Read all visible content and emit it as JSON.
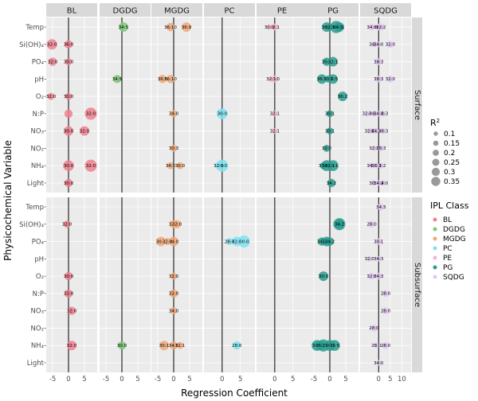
{
  "chart_data": {
    "type": "scatter",
    "xlabel": "Regression Coefficient",
    "ylabel": "Physicochemical Variable",
    "columns": [
      "BL",
      "DGDG",
      "MGDG",
      "PC",
      "PE",
      "PG",
      "SQDG"
    ],
    "rows": [
      "Surface",
      "Subsurface"
    ],
    "variables": [
      "Temp",
      "Si(OH)₄",
      "PO₄",
      "pH",
      "O₂",
      "N:P",
      "NO₃",
      "NO₂",
      "NH₄",
      "Light"
    ],
    "x_ticks": {
      "BL": [
        "-5",
        "0",
        "5"
      ],
      "DGDG": [
        "-5",
        "0",
        "5"
      ],
      "MGDG": [
        "-5",
        "0",
        "5"
      ],
      "PC": [
        "0",
        "5"
      ],
      "PE": [
        "0",
        "5"
      ],
      "PG": [
        "-5",
        "0",
        "5"
      ],
      "SQDG": [
        "0",
        "5",
        "10"
      ]
    },
    "colors": {
      "BL": "#f0808f",
      "DGDG": "#7ec97a",
      "MGDG": "#f0a87a",
      "PC": "#7fe3f0",
      "PE": "#f4b8cc",
      "PG": "#2a9d8f",
      "SQDG": "#e4c8f4"
    },
    "legend_size": {
      "title": "R",
      "superscript": "2",
      "values": [
        "0.1",
        "0.15",
        "0.2",
        "0.25",
        "0.3",
        "0.35"
      ]
    },
    "legend_class": {
      "title": "IPL Class",
      "items": [
        "BL",
        "DGDG",
        "MGDG",
        "PC",
        "PE",
        "PG",
        "SQDG"
      ]
    },
    "points": [
      {
        "r": "Surface",
        "c": "BL",
        "v": "Si(OH)₄",
        "x": -5.2,
        "s": 0.28,
        "label": "32:0"
      },
      {
        "r": "Surface",
        "c": "BL",
        "v": "Si(OH)₄",
        "x": 0,
        "s": 0.2,
        "label": "36:0"
      },
      {
        "r": "Surface",
        "c": "BL",
        "v": "PO₄",
        "x": -5.0,
        "s": 0.2,
        "label": "32:0"
      },
      {
        "r": "Surface",
        "c": "BL",
        "v": "PO₄",
        "x": 0,
        "s": 0.15,
        "label": "30:0"
      },
      {
        "r": "Surface",
        "c": "BL",
        "v": "O₂",
        "x": -5.5,
        "s": 0.15,
        "label": "32:0"
      },
      {
        "r": "Surface",
        "c": "BL",
        "v": "O₂",
        "x": 0,
        "s": 0.15,
        "label": "30:0"
      },
      {
        "r": "Surface",
        "c": "BL",
        "v": "N:P",
        "x": 0,
        "s": 0.2,
        "label": ""
      },
      {
        "r": "Surface",
        "c": "BL",
        "v": "N:P",
        "x": 7,
        "s": 0.35,
        "label": "32:0"
      },
      {
        "r": "Surface",
        "c": "BL",
        "v": "NO₃",
        "x": 0,
        "s": 0.25,
        "label": "30:0"
      },
      {
        "r": "Surface",
        "c": "BL",
        "v": "NO₃",
        "x": 5,
        "s": 0.25,
        "label": "32:0"
      },
      {
        "r": "Surface",
        "c": "BL",
        "v": "NH₄",
        "x": 0,
        "s": 0.3,
        "label": "30:0"
      },
      {
        "r": "Surface",
        "c": "BL",
        "v": "NH₄",
        "x": 7,
        "s": 0.35,
        "label": "32:0"
      },
      {
        "r": "Surface",
        "c": "BL",
        "v": "Light",
        "x": 0,
        "s": 0.2,
        "label": "30:0"
      },
      {
        "r": "Surface",
        "c": "DGDG",
        "v": "Temp",
        "x": 0.5,
        "s": 0.25,
        "label": "34:5"
      },
      {
        "r": "Surface",
        "c": "DGDG",
        "v": "pH",
        "x": -1.5,
        "s": 0.2,
        "label": "34:5"
      },
      {
        "r": "Surface",
        "c": "MGDG",
        "v": "Temp",
        "x": -1,
        "s": 0.2,
        "label": "36:10"
      },
      {
        "r": "Surface",
        "c": "MGDG",
        "v": "Temp",
        "x": 4,
        "s": 0.25,
        "label": "36:9"
      },
      {
        "r": "Surface",
        "c": "MGDG",
        "v": "pH",
        "x": -3.5,
        "s": 0.2,
        "label": "36:9"
      },
      {
        "r": "Surface",
        "c": "MGDG",
        "v": "pH",
        "x": -1,
        "s": 0.2,
        "label": "36:10"
      },
      {
        "r": "Surface",
        "c": "MGDG",
        "v": "N:P",
        "x": 0,
        "s": 0.15,
        "label": "34:0"
      },
      {
        "r": "Surface",
        "c": "MGDG",
        "v": "NO₂",
        "x": 0,
        "s": 0.15,
        "label": "30:3"
      },
      {
        "r": "Surface",
        "c": "MGDG",
        "v": "NH₄",
        "x": -1,
        "s": 0.15,
        "label": "34:0"
      },
      {
        "r": "Surface",
        "c": "MGDG",
        "v": "NH₄",
        "x": 2,
        "s": 0.15,
        "label": "30:0"
      },
      {
        "r": "Surface",
        "c": "PC",
        "v": "N:P",
        "x": 0,
        "s": 0.3,
        "label": "30:0"
      },
      {
        "r": "Surface",
        "c": "PC",
        "v": "NH₄",
        "x": 0,
        "s": 0.35,
        "label": "30:0"
      },
      {
        "r": "Surface",
        "c": "PC",
        "v": "NH₄",
        "x": -1,
        "s": 0.15,
        "label": "32:0"
      },
      {
        "r": "Surface",
        "c": "PE",
        "v": "Temp",
        "x": 0,
        "s": 0.15,
        "label": "32:1"
      },
      {
        "r": "Surface",
        "c": "PE",
        "v": "Temp",
        "x": -1.5,
        "s": 0.1,
        "label": "30:0"
      },
      {
        "r": "Surface",
        "c": "PE",
        "v": "pH",
        "x": 0,
        "s": 0.15,
        "label": "30:0"
      },
      {
        "r": "Surface",
        "c": "PE",
        "v": "pH",
        "x": -1,
        "s": 0.1,
        "label": "32:1"
      },
      {
        "r": "Surface",
        "c": "PE",
        "v": "N:P",
        "x": 0,
        "s": 0.1,
        "label": "32:1"
      },
      {
        "r": "Surface",
        "c": "PE",
        "v": "NO₃",
        "x": 0,
        "s": 0.1,
        "label": "32:1"
      },
      {
        "r": "Surface",
        "c": "PG",
        "v": "Temp",
        "x": -1,
        "s": 0.25,
        "label": "36:5"
      },
      {
        "r": "Surface",
        "c": "PG",
        "v": "Temp",
        "x": 2,
        "s": 0.35,
        "label": "34:2"
      },
      {
        "r": "Surface",
        "c": "PG",
        "v": "Temp",
        "x": 3,
        "s": 0.25,
        "label": "36:1"
      },
      {
        "r": "Surface",
        "c": "PG",
        "v": "Temp",
        "x": 0,
        "s": 0.15,
        "label": "32:1"
      },
      {
        "r": "Surface",
        "c": "PG",
        "v": "Temp",
        "x": 2.5,
        "s": 0.15,
        "label": "34:1"
      },
      {
        "r": "Surface",
        "c": "PG",
        "v": "PO₄",
        "x": -1,
        "s": 0.2,
        "label": "30:1"
      },
      {
        "r": "Surface",
        "c": "PG",
        "v": "PO₄",
        "x": 1,
        "s": 0.25,
        "label": "32:1"
      },
      {
        "r": "Surface",
        "c": "PG",
        "v": "pH",
        "x": -2.5,
        "s": 0.25,
        "label": "36:1"
      },
      {
        "r": "Surface",
        "c": "PG",
        "v": "pH",
        "x": 1,
        "s": 0.25,
        "label": "36:5"
      },
      {
        "r": "Surface",
        "c": "PG",
        "v": "pH",
        "x": -0.5,
        "s": 0.15,
        "label": "30:1"
      },
      {
        "r": "Surface",
        "c": "PG",
        "v": "O₂",
        "x": 4,
        "s": 0.25,
        "label": "36:2"
      },
      {
        "r": "Surface",
        "c": "PG",
        "v": "N:P",
        "x": 0,
        "s": 0.15,
        "label": "30:1"
      },
      {
        "r": "Surface",
        "c": "PG",
        "v": "NO₃",
        "x": 0,
        "s": 0.15,
        "label": "30:1"
      },
      {
        "r": "Surface",
        "c": "PG",
        "v": "NO₂",
        "x": -1,
        "s": 0.15,
        "label": "32:0"
      },
      {
        "r": "Surface",
        "c": "PG",
        "v": "NH₄",
        "x": -2,
        "s": 0.15,
        "label": "34:2"
      },
      {
        "r": "Surface",
        "c": "PG",
        "v": "NH₄",
        "x": -1,
        "s": 0.3,
        "label": "34:1"
      },
      {
        "r": "Surface",
        "c": "PG",
        "v": "NH₄",
        "x": 1,
        "s": 0.3,
        "label": "30:1"
      },
      {
        "r": "Surface",
        "c": "PG",
        "v": "NH₄",
        "x": 0,
        "s": 0.15,
        "label": "32:1"
      },
      {
        "r": "Surface",
        "c": "PG",
        "v": "Light",
        "x": 0.5,
        "s": 0.2,
        "label": "34:2"
      },
      {
        "r": "Surface",
        "c": "SQDG",
        "v": "Temp",
        "x": 0,
        "s": 0.15,
        "label": "38:3"
      },
      {
        "r": "Surface",
        "c": "SQDG",
        "v": "Temp",
        "x": 1,
        "s": 0.15,
        "label": "32:2"
      },
      {
        "r": "Surface",
        "c": "SQDG",
        "v": "Temp",
        "x": -3,
        "s": 0.15,
        "label": "34:0"
      },
      {
        "r": "Surface",
        "c": "SQDG",
        "v": "Si(OH)₄",
        "x": -2,
        "s": 0.1,
        "label": "34:3"
      },
      {
        "r": "Surface",
        "c": "SQDG",
        "v": "Si(OH)₄",
        "x": 5,
        "s": 0.15,
        "label": "32:0"
      },
      {
        "r": "Surface",
        "c": "SQDG",
        "v": "Si(OH)₄",
        "x": 0,
        "s": 0.1,
        "label": "34:0"
      },
      {
        "r": "Surface",
        "c": "SQDG",
        "v": "PO₄",
        "x": 0,
        "s": 0.15,
        "label": "38:3"
      },
      {
        "r": "Surface",
        "c": "SQDG",
        "v": "pH",
        "x": 0,
        "s": 0.15,
        "label": "38:3"
      },
      {
        "r": "Surface",
        "c": "SQDG",
        "v": "pH",
        "x": 5,
        "s": 0.15,
        "label": "32:0"
      },
      {
        "r": "Surface",
        "c": "SQDG",
        "v": "N:P",
        "x": -5,
        "s": 0.1,
        "label": "32:0"
      },
      {
        "r": "Surface",
        "c": "SQDG",
        "v": "N:P",
        "x": -2,
        "s": 0.1,
        "label": "34:2"
      },
      {
        "r": "Surface",
        "c": "SQDG",
        "v": "N:P",
        "x": 2,
        "s": 0.1,
        "label": "38:3"
      },
      {
        "r": "Surface",
        "c": "SQDG",
        "v": "N:P",
        "x": 0,
        "s": 0.1,
        "label": "34:1"
      },
      {
        "r": "Surface",
        "c": "SQDG",
        "v": "NO₃",
        "x": -2,
        "s": 0.1,
        "label": "34:3"
      },
      {
        "r": "Surface",
        "c": "SQDG",
        "v": "NO₃",
        "x": 2,
        "s": 0.1,
        "label": "38:3"
      },
      {
        "r": "Surface",
        "c": "SQDG",
        "v": "NO₃",
        "x": -4,
        "s": 0.1,
        "label": "32:0"
      },
      {
        "r": "Surface",
        "c": "SQDG",
        "v": "NO₃",
        "x": -1,
        "s": 0.1,
        "label": "34:2"
      },
      {
        "r": "Surface",
        "c": "SQDG",
        "v": "NO₂",
        "x": -2,
        "s": 0.1,
        "label": "32:2"
      },
      {
        "r": "Surface",
        "c": "SQDG",
        "v": "NO₂",
        "x": 1,
        "s": 0.1,
        "label": "38:3"
      },
      {
        "r": "Surface",
        "c": "SQDG",
        "v": "NH₄",
        "x": -3,
        "s": 0.1,
        "label": "34:3"
      },
      {
        "r": "Surface",
        "c": "SQDG",
        "v": "NH₄",
        "x": 1,
        "s": 0.1,
        "label": "32:2"
      },
      {
        "r": "Surface",
        "c": "SQDG",
        "v": "NH₄",
        "x": -1,
        "s": 0.1,
        "label": "38:3"
      },
      {
        "r": "Surface",
        "c": "SQDG",
        "v": "Light",
        "x": -2,
        "s": 0.1,
        "label": "30:1"
      },
      {
        "r": "Surface",
        "c": "SQDG",
        "v": "Light",
        "x": 2,
        "s": 0.1,
        "label": "34:0"
      },
      {
        "r": "Surface",
        "c": "SQDG",
        "v": "Light",
        "x": 0,
        "s": 0.1,
        "label": "34:2"
      },
      {
        "r": "Subsurface",
        "c": "BL",
        "v": "Si(OH)₄",
        "x": -0.5,
        "s": 0.15,
        "label": "32:0"
      },
      {
        "r": "Subsurface",
        "c": "BL",
        "v": "O₂",
        "x": 0,
        "s": 0.2,
        "label": "30:0"
      },
      {
        "r": "Subsurface",
        "c": "BL",
        "v": "N:P",
        "x": 0,
        "s": 0.2,
        "label": "32:0"
      },
      {
        "r": "Subsurface",
        "c": "BL",
        "v": "NO₃",
        "x": 1,
        "s": 0.2,
        "label": "32:0"
      },
      {
        "r": "Subsurface",
        "c": "BL",
        "v": "NH₄",
        "x": 1,
        "s": 0.25,
        "label": "32:0"
      },
      {
        "r": "Subsurface",
        "c": "DGDG",
        "v": "NH₄",
        "x": 0,
        "s": 0.2,
        "label": "30:0"
      },
      {
        "r": "Subsurface",
        "c": "MGDG",
        "v": "Si(OH)₄",
        "x": 0,
        "s": 0.2,
        "label": "32:1"
      },
      {
        "r": "Subsurface",
        "c": "MGDG",
        "v": "Si(OH)₄",
        "x": 1,
        "s": 0.2,
        "label": "32:0"
      },
      {
        "r": "Subsurface",
        "c": "MGDG",
        "v": "PO₄",
        "x": -4,
        "s": 0.25,
        "label": "30:1"
      },
      {
        "r": "Subsurface",
        "c": "MGDG",
        "v": "PO₄",
        "x": 0,
        "s": 0.25,
        "label": "34:0"
      },
      {
        "r": "Subsurface",
        "c": "MGDG",
        "v": "PO₄",
        "x": -2,
        "s": 0.15,
        "label": "32:0"
      },
      {
        "r": "Subsurface",
        "c": "MGDG",
        "v": "O₂",
        "x": 0,
        "s": 0.15,
        "label": "32:0"
      },
      {
        "r": "Subsurface",
        "c": "MGDG",
        "v": "N:P",
        "x": 0,
        "s": 0.2,
        "label": "32:0"
      },
      {
        "r": "Subsurface",
        "c": "MGDG",
        "v": "NO₃",
        "x": 0,
        "s": 0.15,
        "label": "34:0"
      },
      {
        "r": "Subsurface",
        "c": "MGDG",
        "v": "NH₄",
        "x": -3,
        "s": 0.25,
        "label": "30:1"
      },
      {
        "r": "Subsurface",
        "c": "MGDG",
        "v": "NH₄",
        "x": 0,
        "s": 0.2,
        "label": "34:0"
      },
      {
        "r": "Subsurface",
        "c": "MGDG",
        "v": "NH₄",
        "x": 2,
        "s": 0.15,
        "label": "32:1"
      },
      {
        "r": "Subsurface",
        "c": "PC",
        "v": "PO₄",
        "x": 6,
        "s": 0.35,
        "label": "30:0"
      },
      {
        "r": "Subsurface",
        "c": "PC",
        "v": "PO₄",
        "x": 4,
        "s": 0.25,
        "label": "32:0"
      },
      {
        "r": "Subsurface",
        "c": "PC",
        "v": "PO₄",
        "x": 2,
        "s": 0.15,
        "label": "28:0"
      },
      {
        "r": "Subsurface",
        "c": "PC",
        "v": "NH₄",
        "x": 4,
        "s": 0.2,
        "label": "28:0"
      },
      {
        "r": "Subsurface",
        "c": "PG",
        "v": "Si(OH)₄",
        "x": 3,
        "s": 0.35,
        "label": "36:2"
      },
      {
        "r": "Subsurface",
        "c": "PG",
        "v": "Si(OH)₄",
        "x": 3,
        "s": 0.25,
        "label": "34:2"
      },
      {
        "r": "Subsurface",
        "c": "PG",
        "v": "PO₄",
        "x": -2.5,
        "s": 0.2,
        "label": "34:1"
      },
      {
        "r": "Subsurface",
        "c": "PG",
        "v": "PO₄",
        "x": -1,
        "s": 0.25,
        "label": "32:1"
      },
      {
        "r": "Subsurface",
        "c": "PG",
        "v": "PO₄",
        "x": 0,
        "s": 0.2,
        "label": "34:2"
      },
      {
        "r": "Subsurface",
        "c": "PG",
        "v": "O₂",
        "x": -2,
        "s": 0.25,
        "label": "30:0"
      },
      {
        "r": "Subsurface",
        "c": "PG",
        "v": "NH₄",
        "x": -4,
        "s": 0.3,
        "label": "34:1"
      },
      {
        "r": "Subsurface",
        "c": "PG",
        "v": "NH₄",
        "x": -2,
        "s": 0.35,
        "label": "36:1"
      },
      {
        "r": "Subsurface",
        "c": "PG",
        "v": "NH₄",
        "x": 0,
        "s": 0.3,
        "label": "34:2"
      },
      {
        "r": "Subsurface",
        "c": "PG",
        "v": "NH₄",
        "x": 1.5,
        "s": 0.3,
        "label": "36:5"
      },
      {
        "r": "Subsurface",
        "c": "PG",
        "v": "NH₄",
        "x": -3,
        "s": 0.25,
        "label": "36:2"
      },
      {
        "r": "Subsurface",
        "c": "SQDG",
        "v": "Temp",
        "x": 1,
        "s": 0.15,
        "label": "34:3"
      },
      {
        "r": "Subsurface",
        "c": "SQDG",
        "v": "Si(OH)₄",
        "x": -3,
        "s": 0.15,
        "label": "28:0"
      },
      {
        "r": "Subsurface",
        "c": "SQDG",
        "v": "PO₄",
        "x": 0,
        "s": 0.15,
        "label": "30:1"
      },
      {
        "r": "Subsurface",
        "c": "SQDG",
        "v": "pH",
        "x": -4,
        "s": 0.1,
        "label": "32:0"
      },
      {
        "r": "Subsurface",
        "c": "SQDG",
        "v": "pH",
        "x": 0,
        "s": 0.1,
        "label": "34:3"
      },
      {
        "r": "Subsurface",
        "c": "SQDG",
        "v": "O₂",
        "x": -3,
        "s": 0.15,
        "label": "32:0"
      },
      {
        "r": "Subsurface",
        "c": "SQDG",
        "v": "O₂",
        "x": 0,
        "s": 0.15,
        "label": "34:3"
      },
      {
        "r": "Subsurface",
        "c": "SQDG",
        "v": "N:P",
        "x": 3,
        "s": 0.15,
        "label": "28:0"
      },
      {
        "r": "Subsurface",
        "c": "SQDG",
        "v": "NO₃",
        "x": 3,
        "s": 0.15,
        "label": "28:0"
      },
      {
        "r": "Subsurface",
        "c": "SQDG",
        "v": "NO₂",
        "x": -2,
        "s": 0.15,
        "label": "28:0"
      },
      {
        "r": "Subsurface",
        "c": "SQDG",
        "v": "NH₄",
        "x": 3,
        "s": 0.15,
        "label": "28:0"
      },
      {
        "r": "Subsurface",
        "c": "SQDG",
        "v": "NH₄",
        "x": -1,
        "s": 0.1,
        "label": "28:0"
      },
      {
        "r": "Subsurface",
        "c": "SQDG",
        "v": "Light",
        "x": 0,
        "s": 0.1,
        "label": "34:0"
      }
    ]
  }
}
